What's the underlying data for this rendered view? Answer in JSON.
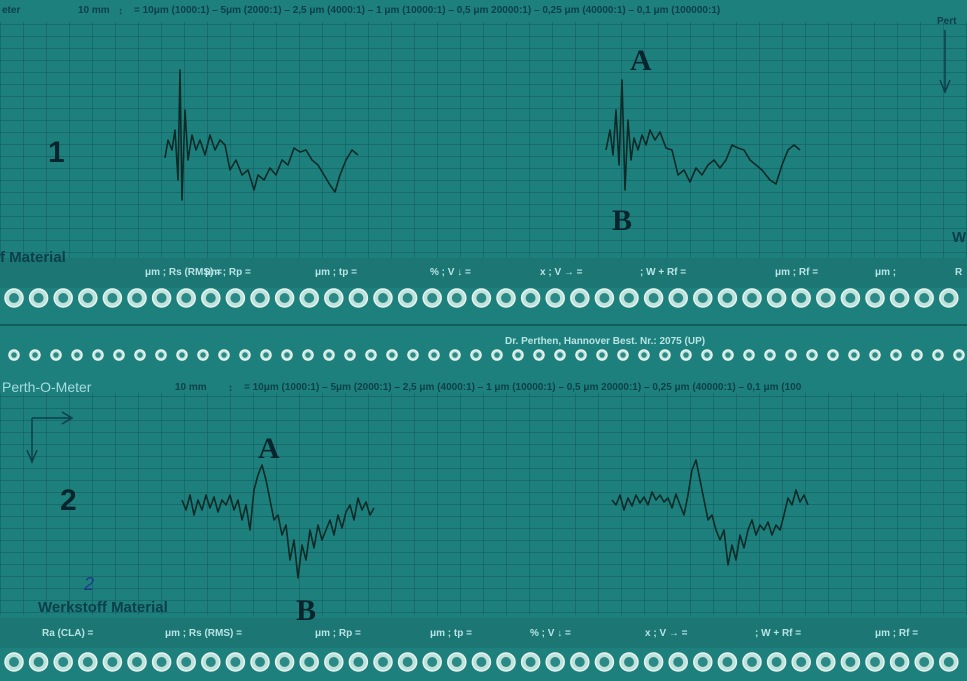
{
  "strip_1": {
    "header_left": "eter",
    "scale_unit": "10 mm",
    "scale_arrow": "↕",
    "scale_text": "= 10μm (1000:1) – 5μm (2000:1) – 2,5 μm (4000:1) – 1 μm (10000:1) – 0,5 μm 20000:1) – 0,25 μm (40000:1) – 0,1 μm (100000:1)",
    "header_right": "Pert",
    "trace_label": "1",
    "marker_a": "A",
    "marker_b": "B",
    "material": "f Material",
    "edge_right": "W"
  },
  "fields_1": [
    "μm ; Rs (RMS) =",
    "μm ; Rp =",
    "μm ; tp =",
    "% ; V ↓ =",
    "x ; V → =",
    "; W + Rf =",
    "μm ; Rf =",
    "μm ;",
    "R"
  ],
  "imprint": "Dr. Perthen, Hannover Best. Nr.: 2075 (UP)",
  "strip_2": {
    "header_left": "Perth-O-Meter",
    "scale_unit": "10 mm",
    "scale_arrow": "↕",
    "scale_text": "= 10μm (1000:1) – 5μm (2000:1) – 2,5 μm (4000:1) – 1 μm (10000:1) – 0,5 μm 20000:1) – 0,25 μm (40000:1) – 0,1 μm (100",
    "trace_label": "2",
    "marker_a": "A",
    "marker_b": "B",
    "handwritten": "2",
    "material": "Werkstoff Material"
  },
  "fields_2": [
    "Ra (CLA) =",
    "μm ; Rs (RMS) =",
    "μm ; Rp =",
    "μm ; tp =",
    "% ; V ↓ =",
    "x ; V → =",
    "; W + Rf =",
    "μm ; Rf ="
  ]
}
